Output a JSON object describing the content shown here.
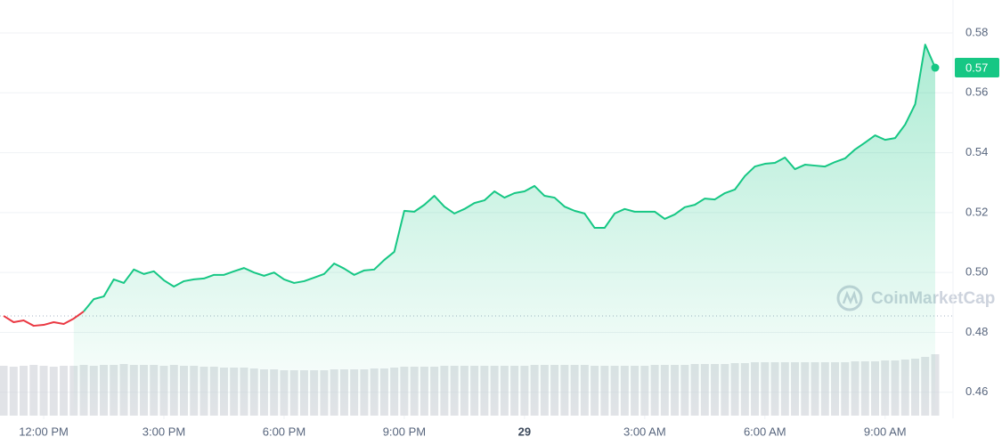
{
  "chart_data": {
    "type": "line",
    "values": [
      0.4855,
      0.4834,
      0.484,
      0.4822,
      0.4825,
      0.4834,
      0.4828,
      0.4846,
      0.487,
      0.4911,
      0.492,
      0.4977,
      0.4965,
      0.501,
      0.4995,
      0.5004,
      0.4974,
      0.4953,
      0.4971,
      0.4977,
      0.498,
      0.4992,
      0.4992,
      0.5004,
      0.5015,
      0.5,
      0.4989,
      0.5,
      0.4977,
      0.4965,
      0.4971,
      0.4983,
      0.4995,
      0.503,
      0.5013,
      0.4992,
      0.5007,
      0.501,
      0.5042,
      0.5069,
      0.5206,
      0.5203,
      0.5226,
      0.5256,
      0.522,
      0.5197,
      0.5212,
      0.5232,
      0.5241,
      0.5271,
      0.525,
      0.5265,
      0.5271,
      0.5289,
      0.5256,
      0.525,
      0.522,
      0.5206,
      0.5197,
      0.5149,
      0.5149,
      0.5197,
      0.5212,
      0.5203,
      0.5203,
      0.5203,
      0.5179,
      0.5194,
      0.5218,
      0.5226,
      0.5247,
      0.5244,
      0.5265,
      0.5277,
      0.5322,
      0.5354,
      0.5363,
      0.5366,
      0.5384,
      0.5345,
      0.536,
      0.5357,
      0.5354,
      0.5369,
      0.5381,
      0.5411,
      0.5434,
      0.5458,
      0.5443,
      0.5449,
      0.5494,
      0.5562,
      0.5761,
      0.5684
    ],
    "volume": [
      56,
      55,
      56,
      57,
      56,
      55,
      56,
      56,
      57,
      56,
      57,
      57,
      58,
      57,
      57,
      57,
      56,
      57,
      56,
      56,
      55,
      55,
      54,
      54,
      54,
      53,
      52,
      52,
      51,
      51,
      51,
      51,
      51,
      52,
      52,
      52,
      52,
      53,
      53,
      54,
      55,
      55,
      55,
      55,
      56,
      56,
      56,
      56,
      56,
      56,
      56,
      56,
      56,
      57,
      57,
      57,
      57,
      57,
      57,
      56,
      56,
      56,
      56,
      56,
      56,
      57,
      57,
      57,
      57,
      58,
      58,
      58,
      58,
      59,
      59,
      60,
      60,
      60,
      60,
      60,
      60,
      60,
      60,
      60,
      60,
      61,
      61,
      61,
      62,
      62,
      63,
      64,
      66,
      69
    ],
    "volume_lim": [
      0,
      100
    ],
    "volume_color": "#c8ccd4",
    "baseline": 0.4855,
    "up_color": "#16c784",
    "down_color": "#ea3943",
    "current_price_label": "0.57",
    "watermark": "CoinMarketCap",
    "xlim": [
      -0.36,
      93
    ],
    "xticks": [
      {
        "value": 4,
        "label": "12:00 PM"
      },
      {
        "value": 16,
        "label": "3:00 PM"
      },
      {
        "value": 28,
        "label": "6:00 PM"
      },
      {
        "value": 40,
        "label": "9:00 PM"
      },
      {
        "value": 52,
        "label": "29"
      },
      {
        "value": 64,
        "label": "3:00 AM"
      },
      {
        "value": 76,
        "label": "6:00 AM"
      },
      {
        "value": 88,
        "label": "9:00 AM"
      }
    ],
    "ylim": [
      0.4522,
      0.591
    ],
    "yticks": [
      0.46,
      0.48,
      {
        "value": 0.5,
        "label": "0.50"
      },
      0.52,
      0.54,
      0.56,
      0.58
    ],
    "grid": true
  }
}
